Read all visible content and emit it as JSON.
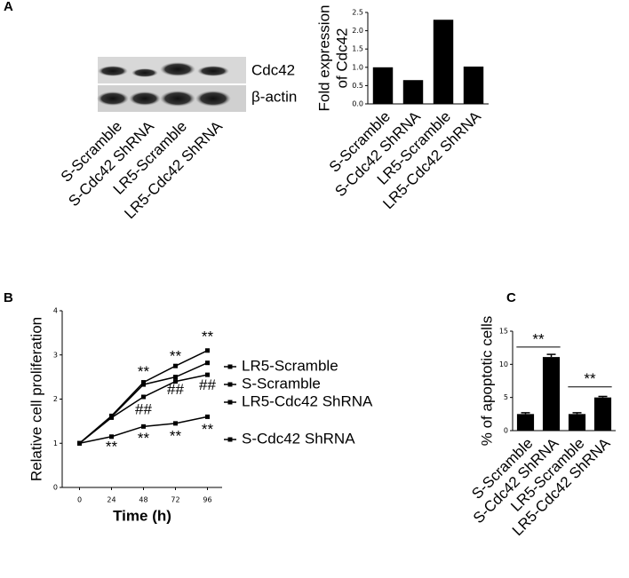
{
  "panels": [
    "A",
    "B",
    "C"
  ],
  "blot": {
    "bands": [
      "Cdc42",
      "β-actin"
    ],
    "lanes": [
      "S-Scramble",
      "S-Cdc42 ShRNA",
      "LR5-Scramble",
      "LR5-Cdc42 ShRNA"
    ]
  },
  "chart_data": [
    {
      "type": "bar",
      "y_label": [
        "Fold expression",
        "of Cdc42"
      ],
      "categories": [
        "S-Scramble",
        "S-Cdc42 ShRNA",
        "LR5-Scramble",
        "LR5-Cdc42 ShRNA"
      ],
      "values": [
        1.0,
        0.65,
        2.3,
        1.02
      ],
      "color": "#000000",
      "ylim": [
        0,
        2.5
      ],
      "yticks": [
        {
          "value": 0,
          "label": "0.0"
        },
        {
          "value": 0.5,
          "label": "0.5"
        },
        {
          "value": 1,
          "label": "1.0"
        },
        {
          "value": 1.5,
          "label": "1.5"
        },
        {
          "value": 2,
          "label": "2.0"
        },
        {
          "value": 2.5,
          "label": "2.5"
        }
      ]
    },
    {
      "type": "line",
      "x_label": "Time (h)",
      "y_label": "Relative cell proliferation",
      "x": [
        0,
        24,
        48,
        72,
        96
      ],
      "xlim": [
        -13,
        107
      ],
      "xticks": [
        0,
        24,
        48,
        72,
        96
      ],
      "ylim": [
        0,
        4
      ],
      "yticks": [
        0,
        1,
        2,
        3,
        4
      ],
      "series": [
        {
          "name": "LR5-Scramble",
          "color": "#000000",
          "values": [
            1.0,
            1.62,
            2.38,
            2.75,
            3.1
          ]
        },
        {
          "name": "S-Scramble",
          "color": "#000000",
          "values": [
            1.0,
            1.6,
            2.33,
            2.5,
            2.82
          ]
        },
        {
          "name": "LR5-Cdc42 ShRNA",
          "color": "#000000",
          "values": [
            1.0,
            1.58,
            2.05,
            2.4,
            2.55
          ]
        },
        {
          "name": "S-Cdc42 ShRNA",
          "color": "#000000",
          "values": [
            1.0,
            1.15,
            1.38,
            1.45,
            1.6
          ]
        }
      ],
      "annotations": [
        {
          "text": "**",
          "x": 96,
          "y": 3.4
        },
        {
          "text": "**",
          "x": 72,
          "y": 2.95
        },
        {
          "text": "**",
          "x": 48,
          "y": 2.6
        },
        {
          "text": "##",
          "x": 96,
          "y": 2.3
        },
        {
          "text": "##",
          "x": 72,
          "y": 2.2
        },
        {
          "text": "##",
          "x": 48,
          "y": 1.75
        },
        {
          "text": "**",
          "x": 24,
          "y": 0.9
        },
        {
          "text": "**",
          "x": 48,
          "y": 1.1
        },
        {
          "text": "**",
          "x": 72,
          "y": 1.15
        },
        {
          "text": "**",
          "x": 96,
          "y": 1.3
        }
      ]
    },
    {
      "type": "bar",
      "y_label": [
        "% of apoptotic cells"
      ],
      "categories": [
        "S-Scramble",
        "S-Cdc42 ShRNA",
        "LR5-Scramble",
        "LR5-Cdc42 ShRNA"
      ],
      "values": [
        2.5,
        11.1,
        2.5,
        5.0
      ],
      "errors": [
        0.2,
        0.4,
        0.2,
        0.15
      ],
      "color": "#000000",
      "ylim": [
        0,
        15
      ],
      "yticks": [
        0,
        5,
        10,
        15
      ],
      "brackets": [
        {
          "text": "**",
          "from": 0,
          "to": 1,
          "y": 12.6
        },
        {
          "text": "**",
          "from": 2,
          "to": 3,
          "y": 6.6
        }
      ]
    }
  ]
}
